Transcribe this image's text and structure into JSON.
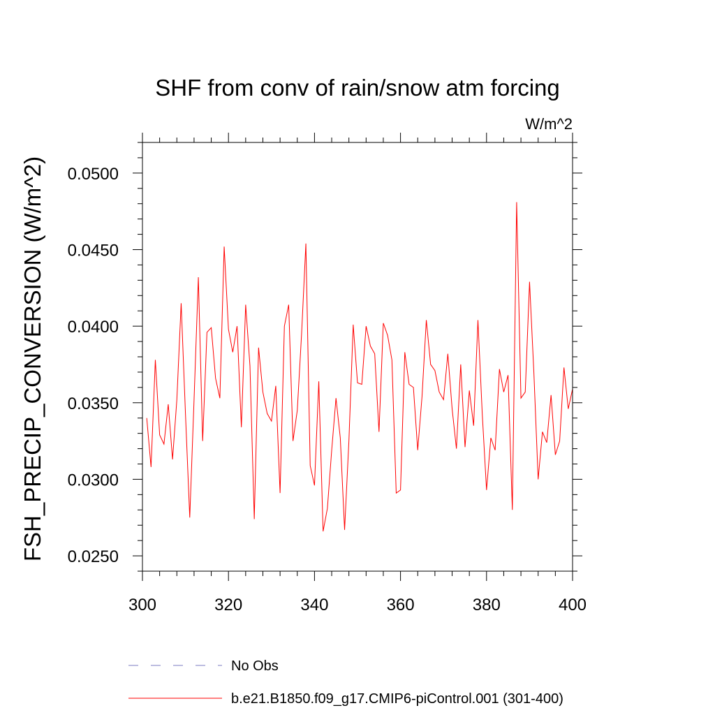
{
  "chart_data": {
    "type": "line",
    "title": "SHF from conv of rain/snow atm forcing",
    "units_label": "W/m^2",
    "xlabel": "",
    "ylabel": "FSH_PRECIP_CONVERSION  (W/m^2)",
    "xlim": [
      300,
      400
    ],
    "ylim": [
      0.024,
      0.052
    ],
    "xticks": [
      300,
      320,
      340,
      360,
      380,
      400
    ],
    "xtick_labels": [
      "300",
      "320",
      "340",
      "360",
      "380",
      "400"
    ],
    "yticks": [
      0.025,
      0.03,
      0.035,
      0.04,
      0.045,
      0.05
    ],
    "ytick_labels": [
      "0.0250",
      "0.0300",
      "0.0350",
      "0.0400",
      "0.0450",
      "0.0500"
    ],
    "x_minor_step": 4,
    "y_minor_step": 0.001,
    "series": [
      {
        "name": "b.e21.B1850.f09_g17.CMIP6-piControl.001 (301-400)",
        "color": "#ff0000",
        "style": "solid",
        "x": [
          301,
          302,
          303,
          304,
          305,
          306,
          307,
          308,
          309,
          310,
          311,
          312,
          313,
          314,
          315,
          316,
          317,
          318,
          319,
          320,
          321,
          322,
          323,
          324,
          325,
          326,
          327,
          328,
          329,
          330,
          331,
          332,
          333,
          334,
          335,
          336,
          337,
          338,
          339,
          340,
          341,
          342,
          343,
          344,
          345,
          346,
          347,
          348,
          349,
          350,
          351,
          352,
          353,
          354,
          355,
          356,
          357,
          358,
          359,
          360,
          361,
          362,
          363,
          364,
          365,
          366,
          367,
          368,
          369,
          370,
          371,
          372,
          373,
          374,
          375,
          376,
          377,
          378,
          379,
          380,
          381,
          382,
          383,
          384,
          385,
          386,
          387,
          388,
          389,
          390,
          391,
          392,
          393,
          394,
          395,
          396,
          397,
          398,
          399,
          400
        ],
        "values": [
          0.034,
          0.0308,
          0.0378,
          0.0329,
          0.0323,
          0.0349,
          0.0313,
          0.0352,
          0.0415,
          0.0343,
          0.0275,
          0.0352,
          0.0432,
          0.0325,
          0.0396,
          0.0399,
          0.0366,
          0.0353,
          0.0452,
          0.0398,
          0.0383,
          0.04,
          0.0334,
          0.0414,
          0.0374,
          0.0274,
          0.0386,
          0.0357,
          0.0343,
          0.0338,
          0.0361,
          0.0291,
          0.04,
          0.0414,
          0.0325,
          0.0345,
          0.0395,
          0.0454,
          0.0309,
          0.0296,
          0.0364,
          0.0266,
          0.0281,
          0.0319,
          0.0353,
          0.0327,
          0.0267,
          0.0325,
          0.0401,
          0.0363,
          0.0362,
          0.04,
          0.0387,
          0.0382,
          0.0331,
          0.0402,
          0.0394,
          0.0378,
          0.0291,
          0.0293,
          0.0383,
          0.0362,
          0.036,
          0.0319,
          0.0354,
          0.0404,
          0.0375,
          0.0371,
          0.0357,
          0.0352,
          0.0382,
          0.0346,
          0.032,
          0.0375,
          0.0321,
          0.0358,
          0.0335,
          0.0404,
          0.0343,
          0.0293,
          0.0327,
          0.0319,
          0.0372,
          0.0357,
          0.0368,
          0.028,
          0.0481,
          0.0353,
          0.0357,
          0.0429,
          0.037,
          0.03,
          0.0331,
          0.0324,
          0.0355,
          0.0316,
          0.0325,
          0.0373,
          0.0346,
          0.0359
        ]
      }
    ],
    "legend": [
      {
        "label": "No Obs",
        "color": "#7b7bc0",
        "style": "dashed"
      },
      {
        "label": "b.e21.B1850.f09_g17.CMIP6-piControl.001 (301-400)",
        "color": "#ff0000",
        "style": "solid"
      }
    ]
  }
}
